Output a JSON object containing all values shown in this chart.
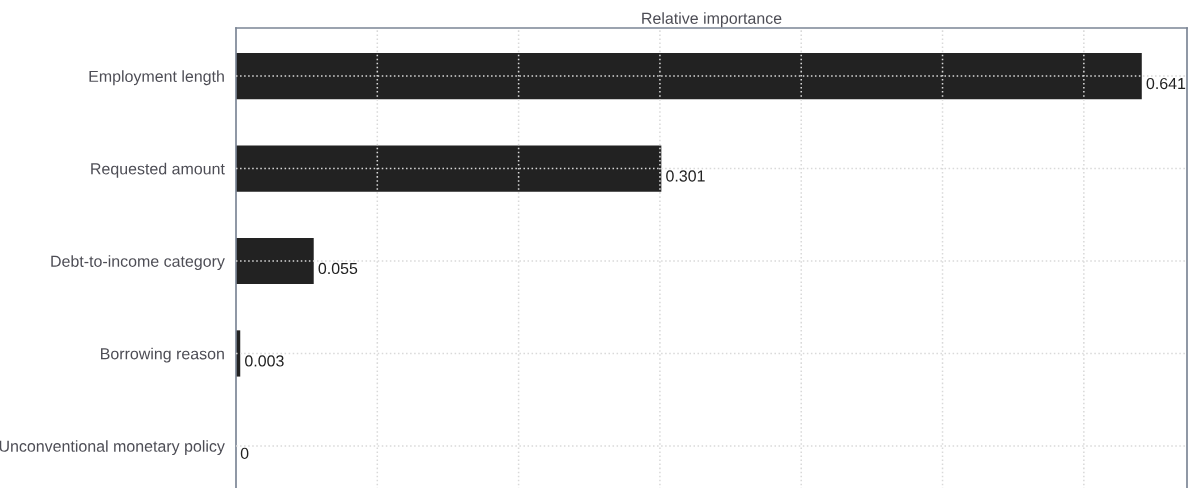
{
  "chart_data": {
    "type": "bar",
    "orientation": "horizontal",
    "title": "Relative importance",
    "categories": [
      "Employment length",
      "Requested amount",
      "Debt-to-income category",
      "Borrowing reason",
      "Unconventional monetary policy"
    ],
    "values": [
      0.641,
      0.301,
      0.055,
      0.003,
      0
    ],
    "color": "#222222",
    "data_labels": true,
    "xlim": [
      0,
      0.673
    ],
    "xticks": [
      {
        "value": 0.1,
        "label": null
      },
      {
        "value": 0.2,
        "label": null
      },
      {
        "value": 0.3,
        "label": null
      },
      {
        "value": 0.4,
        "label": null
      },
      {
        "value": 0.5,
        "label": null
      },
      {
        "value": 0.6,
        "label": null
      }
    ],
    "tick_labels": "y",
    "grid": true,
    "legend": false
  }
}
